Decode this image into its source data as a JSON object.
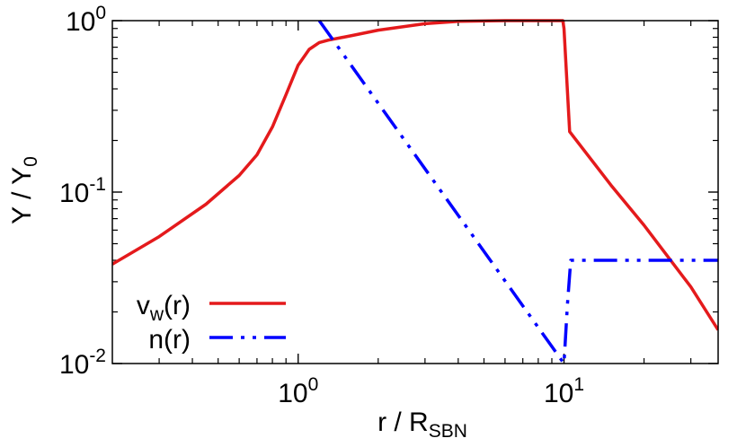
{
  "chart_data": {
    "type": "line",
    "xscale": "log",
    "yscale": "log",
    "xlim": [
      0.2,
      38
    ],
    "ylim": [
      0.01,
      1
    ],
    "xlabel": {
      "base": "r / R",
      "sub": "SBN"
    },
    "ylabel": {
      "base": "Y / Y",
      "sub": "0"
    },
    "x_ticks": [
      {
        "value": 1,
        "base": "10",
        "exp": "0"
      },
      {
        "value": 10,
        "base": "10",
        "exp": "1"
      }
    ],
    "y_ticks": [
      {
        "value": 0.01,
        "base": "10",
        "exp": "-2"
      },
      {
        "value": 0.1,
        "base": "10",
        "exp": "-1"
      },
      {
        "value": 1,
        "base": "10",
        "exp": "0"
      }
    ],
    "legend_position": "bottom-left",
    "series": [
      {
        "name": "v_w(r)",
        "legend": {
          "base": "v",
          "sub": "w",
          "suffix": "(r)"
        },
        "color": "#e41a1c",
        "dash": "solid",
        "x": [
          0.2,
          0.3,
          0.45,
          0.6,
          0.7,
          0.8,
          0.9,
          1.0,
          1.1,
          1.2,
          1.3,
          1.6,
          2.0,
          3.0,
          4.0,
          6.0,
          9.9,
          10.0,
          10.5,
          15.0,
          20.0,
          30.0,
          38.0
        ],
        "y": [
          0.038,
          0.055,
          0.085,
          0.125,
          0.165,
          0.24,
          0.37,
          0.55,
          0.68,
          0.745,
          0.77,
          0.82,
          0.88,
          0.96,
          0.99,
          1.0,
          1.0,
          0.9,
          0.225,
          0.11,
          0.064,
          0.028,
          0.0157
        ]
      },
      {
        "name": "n(r)",
        "legend": {
          "base": "n",
          "sub": "",
          "suffix": "(r)"
        },
        "color": "#0000ff",
        "dash": "dash-dot-dot",
        "x": [
          1.2,
          10.0,
          10.3,
          10.6,
          38.0
        ],
        "y": [
          1.0,
          0.01,
          0.022,
          0.04,
          0.04
        ]
      }
    ]
  }
}
